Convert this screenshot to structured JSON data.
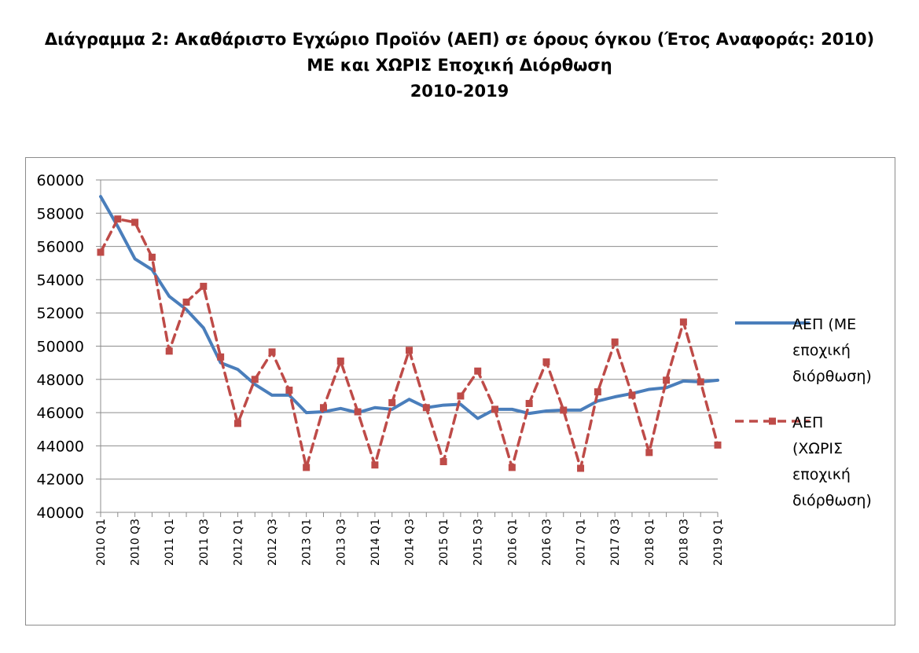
{
  "title": {
    "lines": [
      "Διάγραμμα 2: Ακαθάριστο Εγχώριο Προϊόν (ΑΕΠ) σε όρους όγκου (Έτος Αναφοράς: 2010)",
      "ΜΕ και ΧΩΡΙΣ Εποχική Διόρθωση",
      "2010-2019"
    ]
  },
  "chart_data": {
    "type": "line",
    "title": "Διάγραμμα 2: Ακαθάριστο Εγχώριο Προϊόν (ΑΕΠ) σε όρους όγκου (Έτος Αναφοράς: 2010) ΜΕ και ΧΩΡΙΣ Εποχική Διόρθωση 2010-2019",
    "xlabel": "",
    "ylabel": "",
    "categories": [
      "2010 Q1",
      "2010 Q2",
      "2010 Q3",
      "2010 Q4",
      "2011 Q1",
      "2011 Q2",
      "2011 Q3",
      "2011 Q4",
      "2012 Q1",
      "2012 Q2",
      "2012 Q3",
      "2012 Q4",
      "2013 Q1",
      "2013 Q2",
      "2013 Q3",
      "2013 Q4",
      "2014 Q1",
      "2014 Q2",
      "2014 Q3",
      "2014 Q4",
      "2015 Q1",
      "2015 Q2",
      "2015 Q3",
      "2015 Q4",
      "2016 Q1",
      "2016 Q2",
      "2016 Q3",
      "2016 Q4",
      "2017 Q1",
      "2017 Q2",
      "2017 Q3",
      "2017 Q4",
      "2018 Q1",
      "2018 Q2",
      "2018 Q3",
      "2018 Q4",
      "2019 Q1"
    ],
    "tick_labels_x": [
      "2010 Q1",
      "2010 Q3",
      "2011 Q1",
      "2011 Q3",
      "2012 Q1",
      "2012 Q3",
      "2013 Q1",
      "2013 Q3",
      "2014 Q1",
      "2014 Q3",
      "2015 Q1",
      "2015 Q3",
      "2016 Q1",
      "2016 Q3",
      "2017 Q1",
      "2017 Q3",
      "2018 Q1",
      "2018 Q3",
      "2019 Q1"
    ],
    "ylim": [
      40000,
      60000
    ],
    "yticks": [
      40000,
      42000,
      44000,
      46000,
      48000,
      50000,
      52000,
      54000,
      56000,
      58000,
      60000
    ],
    "grid": true,
    "legend_position": "right",
    "series": [
      {
        "name": "ΑΕΠ (ΜΕ εποχική διόρθωση)",
        "legend_lines": [
          "ΑΕΠ (ΜΕ",
          "εποχική",
          "διόρθωση)"
        ],
        "color": "#4a7ebb",
        "style": "solid",
        "values": [
          59000,
          57200,
          55250,
          54600,
          53000,
          52200,
          51100,
          49000,
          48600,
          47700,
          47050,
          47050,
          46000,
          46050,
          46250,
          46000,
          46300,
          46200,
          46800,
          46300,
          46450,
          46500,
          45650,
          46200,
          46200,
          45950,
          46100,
          46150,
          46150,
          46700,
          46950,
          47150,
          47400,
          47500,
          47900,
          47850,
          47950
        ]
      },
      {
        "name": "ΑΕΠ (ΧΩΡΙΣ εποχική διόρθωση)",
        "legend_lines": [
          "ΑΕΠ",
          "(ΧΩΡΙΣ",
          "εποχική",
          "διόρθωση)"
        ],
        "color": "#be4b48",
        "style": "dashed",
        "marker": "square",
        "values": [
          55650,
          57650,
          57450,
          55350,
          49700,
          52650,
          53600,
          49350,
          45350,
          48000,
          49650,
          47350,
          42700,
          46300,
          49100,
          46050,
          42850,
          46600,
          49750,
          46300,
          43050,
          47000,
          48500,
          46200,
          42700,
          46550,
          49050,
          46150,
          42650,
          47250,
          50250,
          47050,
          43600,
          47950,
          51450,
          47850,
          44050
        ]
      }
    ]
  }
}
